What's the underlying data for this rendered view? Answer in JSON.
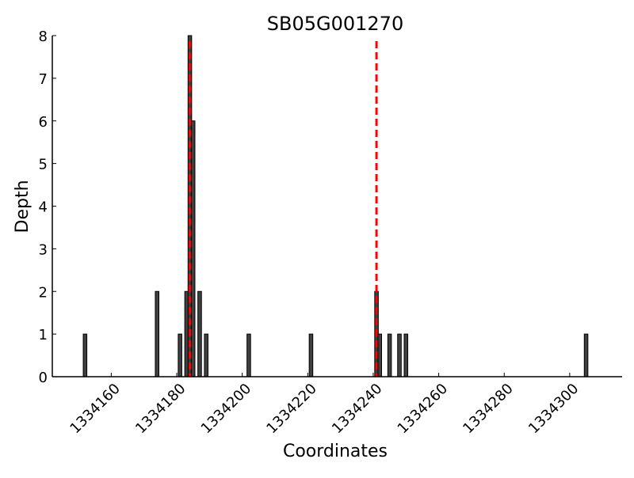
{
  "chart_data": {
    "type": "bar",
    "title": "SB05G001270",
    "xlabel": "Coordinates",
    "ylabel": "Depth",
    "xlim": [
      1334142,
      1334316
    ],
    "ylim": [
      0,
      8
    ],
    "xticks": [
      1334160,
      1334180,
      1334200,
      1334220,
      1334240,
      1334260,
      1334280,
      1334300
    ],
    "yticks": [
      0,
      1,
      2,
      3,
      4,
      5,
      6,
      7,
      8
    ],
    "grid": false,
    "bar_color": "#404040",
    "x": [
      1334152,
      1334174,
      1334181,
      1334183,
      1334184,
      1334185,
      1334187,
      1334189,
      1334202,
      1334221,
      1334241,
      1334242,
      1334245,
      1334248,
      1334250,
      1334305
    ],
    "values": [
      1,
      2,
      1,
      2,
      8,
      6,
      2,
      1,
      1,
      1,
      2,
      1,
      1,
      1,
      1,
      1
    ],
    "vlines": {
      "x": [
        1334184,
        1334241
      ],
      "color": "#ff0000",
      "style": "dashed"
    }
  }
}
